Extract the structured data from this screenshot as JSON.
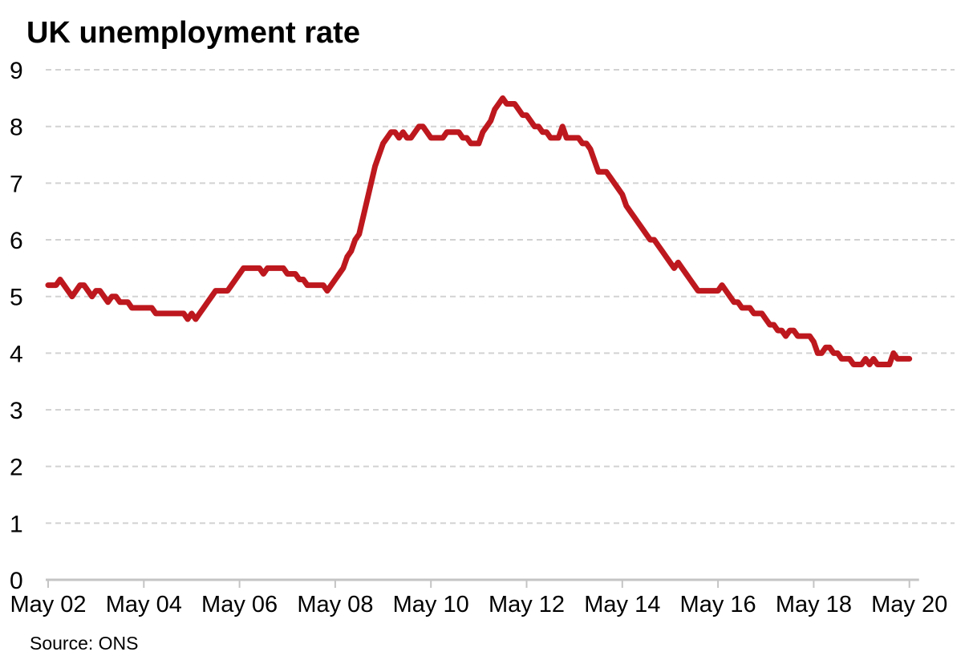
{
  "title": "UK unemployment rate",
  "source": "Source: ONS",
  "colors": {
    "line": "#bd181e",
    "grid": "#d2d2d2",
    "axis": "#c4c4c4",
    "text": "#000000"
  },
  "chart_data": {
    "type": "line",
    "title": "UK unemployment rate",
    "unit": "percent",
    "frequency": "monthly",
    "x_start": "May 2002",
    "x_end": "May 2020",
    "x_tick_labels": [
      "May 02",
      "May 04",
      "May 06",
      "May 08",
      "May 10",
      "May 12",
      "May 14",
      "May 16",
      "May 18",
      "May 20"
    ],
    "y_tick_labels": [
      "0",
      "1",
      "2",
      "3",
      "4",
      "5",
      "6",
      "7",
      "8",
      "9"
    ],
    "ylim": [
      0,
      9
    ],
    "grid": "horizontal-dashed",
    "legend": "none",
    "source_label": "Source: ONS",
    "series": [
      {
        "name": "UK unemployment rate",
        "values": [
          5.2,
          5.2,
          5.2,
          5.3,
          5.2,
          5.1,
          5.0,
          5.1,
          5.2,
          5.2,
          5.1,
          5.0,
          5.1,
          5.1,
          5.0,
          4.9,
          5.0,
          5.0,
          4.9,
          4.9,
          4.9,
          4.8,
          4.8,
          4.8,
          4.8,
          4.8,
          4.8,
          4.7,
          4.7,
          4.7,
          4.7,
          4.7,
          4.7,
          4.7,
          4.7,
          4.6,
          4.7,
          4.6,
          4.7,
          4.8,
          4.9,
          5.0,
          5.1,
          5.1,
          5.1,
          5.1,
          5.2,
          5.3,
          5.4,
          5.5,
          5.5,
          5.5,
          5.5,
          5.5,
          5.4,
          5.5,
          5.5,
          5.5,
          5.5,
          5.5,
          5.4,
          5.4,
          5.4,
          5.3,
          5.3,
          5.2,
          5.2,
          5.2,
          5.2,
          5.2,
          5.1,
          5.2,
          5.3,
          5.4,
          5.5,
          5.7,
          5.8,
          6.0,
          6.1,
          6.4,
          6.7,
          7.0,
          7.3,
          7.5,
          7.7,
          7.8,
          7.9,
          7.9,
          7.8,
          7.9,
          7.8,
          7.8,
          7.9,
          8.0,
          8.0,
          7.9,
          7.8,
          7.8,
          7.8,
          7.8,
          7.9,
          7.9,
          7.9,
          7.9,
          7.8,
          7.8,
          7.7,
          7.7,
          7.7,
          7.9,
          8.0,
          8.1,
          8.3,
          8.4,
          8.5,
          8.4,
          8.4,
          8.4,
          8.3,
          8.2,
          8.2,
          8.1,
          8.0,
          8.0,
          7.9,
          7.9,
          7.8,
          7.8,
          7.8,
          8.0,
          7.8,
          7.8,
          7.8,
          7.8,
          7.7,
          7.7,
          7.6,
          7.4,
          7.2,
          7.2,
          7.2,
          7.1,
          7.0,
          6.9,
          6.8,
          6.6,
          6.5,
          6.4,
          6.3,
          6.2,
          6.1,
          6.0,
          6.0,
          5.9,
          5.8,
          5.7,
          5.6,
          5.5,
          5.6,
          5.5,
          5.4,
          5.3,
          5.2,
          5.1,
          5.1,
          5.1,
          5.1,
          5.1,
          5.1,
          5.2,
          5.1,
          5.0,
          4.9,
          4.9,
          4.8,
          4.8,
          4.8,
          4.7,
          4.7,
          4.7,
          4.6,
          4.5,
          4.5,
          4.4,
          4.4,
          4.3,
          4.4,
          4.4,
          4.3,
          4.3,
          4.3,
          4.3,
          4.2,
          4.0,
          4.0,
          4.1,
          4.1,
          4.0,
          4.0,
          3.9,
          3.9,
          3.9,
          3.8,
          3.8,
          3.8,
          3.9,
          3.8,
          3.9,
          3.8,
          3.8,
          3.8,
          3.8,
          4.0,
          3.9,
          3.9,
          3.9,
          3.9
        ]
      }
    ]
  }
}
